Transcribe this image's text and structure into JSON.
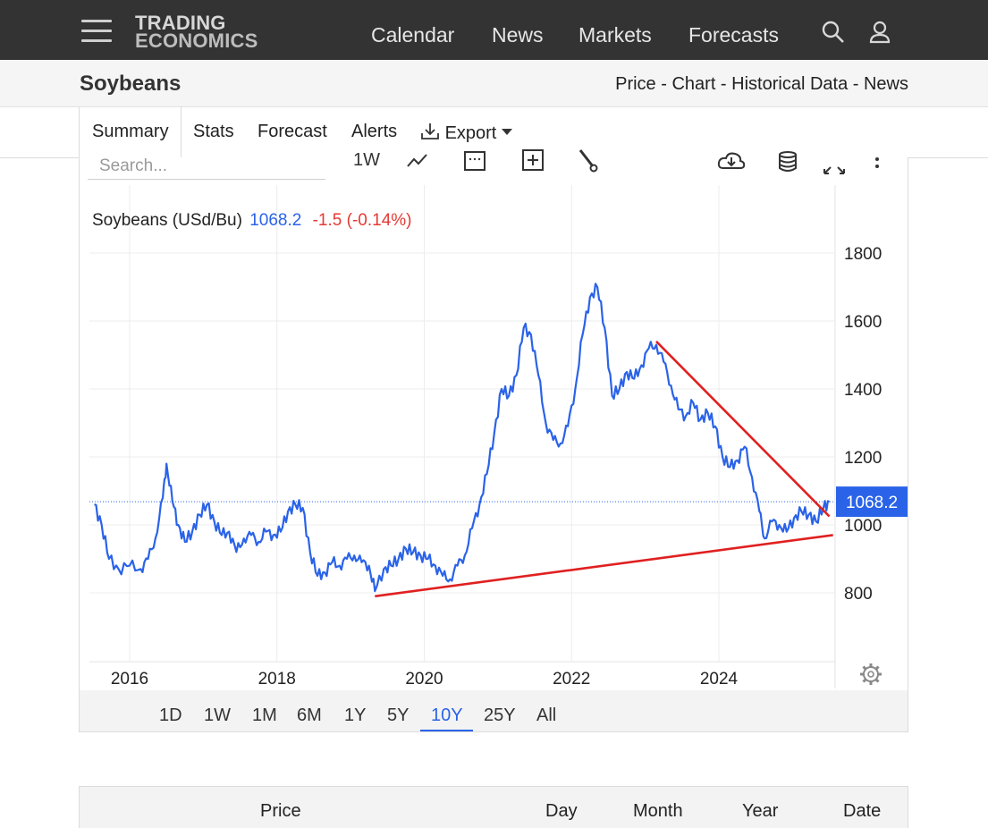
{
  "nav": {
    "logo_line1": "TRADING",
    "logo_line2": "ECONOMICS",
    "items": [
      "Calendar",
      "News",
      "Markets",
      "Forecasts"
    ],
    "icons": [
      "menu-icon",
      "search-icon",
      "user-icon"
    ]
  },
  "header": {
    "title": "Soybeans",
    "breadcrumbs": [
      "Price",
      "Chart",
      "Historical Data",
      "News"
    ],
    "separator": " - "
  },
  "tabs": {
    "items": [
      "Summary",
      "Stats",
      "Forecast",
      "Alerts"
    ],
    "export_label": "Export",
    "active": "Summary"
  },
  "toolbar": {
    "search_placeholder": "Search...",
    "interval_label": "1W",
    "icons": [
      "line-chart-icon",
      "calendar-icon",
      "add-indicator-icon",
      "draw-tool-icon",
      "download-icon",
      "database-icon",
      "fullscreen-icon",
      "more-options-icon"
    ]
  },
  "chart_header": {
    "name": "Soybeans (USd/Bu)",
    "price": "1068.2",
    "change": "-1.5 (-0.14%)",
    "price_color": "#2a63e8",
    "change_color": "#e53935"
  },
  "chart_data": {
    "type": "line",
    "title": "Soybeans (USd/Bu)",
    "x_tick_labels": [
      "2016",
      "2018",
      "2020",
      "2022",
      "2024"
    ],
    "y_tick_labels": [
      "800",
      "1000",
      "1200",
      "1400",
      "1600",
      "1800"
    ],
    "ylim": [
      600,
      1800
    ],
    "xlim": [
      2015.5,
      2025.6
    ],
    "last_value_label": "1068.2",
    "last_value": 1068.2,
    "grid": true,
    "series": [
      {
        "color": "#2a63e8",
        "points": [
          [
            2015.52,
            1060
          ],
          [
            2015.62,
            1000
          ],
          [
            2015.72,
            900
          ],
          [
            2015.85,
            870
          ],
          [
            2016.0,
            880
          ],
          [
            2016.15,
            870
          ],
          [
            2016.25,
            900
          ],
          [
            2016.35,
            960
          ],
          [
            2016.45,
            1080
          ],
          [
            2016.5,
            1180
          ],
          [
            2016.58,
            1070
          ],
          [
            2016.66,
            1000
          ],
          [
            2016.75,
            950
          ],
          [
            2016.85,
            980
          ],
          [
            2016.95,
            1030
          ],
          [
            2017.05,
            1060
          ],
          [
            2017.15,
            1010
          ],
          [
            2017.25,
            970
          ],
          [
            2017.35,
            980
          ],
          [
            2017.45,
            920
          ],
          [
            2017.55,
            960
          ],
          [
            2017.65,
            970
          ],
          [
            2017.75,
            950
          ],
          [
            2017.85,
            980
          ],
          [
            2017.95,
            970
          ],
          [
            2018.05,
            980
          ],
          [
            2018.15,
            1040
          ],
          [
            2018.25,
            1060
          ],
          [
            2018.35,
            1050
          ],
          [
            2018.45,
            920
          ],
          [
            2018.55,
            850
          ],
          [
            2018.65,
            860
          ],
          [
            2018.75,
            890
          ],
          [
            2018.85,
            880
          ],
          [
            2018.95,
            900
          ],
          [
            2019.05,
            910
          ],
          [
            2019.15,
            890
          ],
          [
            2019.25,
            880
          ],
          [
            2019.33,
            805
          ],
          [
            2019.45,
            870
          ],
          [
            2019.55,
            880
          ],
          [
            2019.65,
            900
          ],
          [
            2019.75,
            930
          ],
          [
            2019.85,
            920
          ],
          [
            2019.95,
            910
          ],
          [
            2020.05,
            900
          ],
          [
            2020.15,
            880
          ],
          [
            2020.25,
            850
          ],
          [
            2020.35,
            840
          ],
          [
            2020.45,
            880
          ],
          [
            2020.55,
            910
          ],
          [
            2020.65,
            990
          ],
          [
            2020.75,
            1060
          ],
          [
            2020.85,
            1150
          ],
          [
            2020.95,
            1270
          ],
          [
            2021.05,
            1400
          ],
          [
            2021.15,
            1380
          ],
          [
            2021.25,
            1440
          ],
          [
            2021.35,
            1580
          ],
          [
            2021.45,
            1560
          ],
          [
            2021.55,
            1440
          ],
          [
            2021.65,
            1300
          ],
          [
            2021.75,
            1250
          ],
          [
            2021.85,
            1240
          ],
          [
            2021.95,
            1290
          ],
          [
            2022.05,
            1400
          ],
          [
            2022.15,
            1560
          ],
          [
            2022.25,
            1670
          ],
          [
            2022.35,
            1700
          ],
          [
            2022.45,
            1580
          ],
          [
            2022.55,
            1380
          ],
          [
            2022.65,
            1400
          ],
          [
            2022.75,
            1450
          ],
          [
            2022.85,
            1430
          ],
          [
            2022.95,
            1470
          ],
          [
            2023.05,
            1520
          ],
          [
            2023.15,
            1530
          ],
          [
            2023.25,
            1480
          ],
          [
            2023.35,
            1410
          ],
          [
            2023.45,
            1340
          ],
          [
            2023.55,
            1320
          ],
          [
            2023.65,
            1360
          ],
          [
            2023.75,
            1310
          ],
          [
            2023.85,
            1330
          ],
          [
            2023.95,
            1290
          ],
          [
            2024.05,
            1200
          ],
          [
            2024.15,
            1170
          ],
          [
            2024.25,
            1190
          ],
          [
            2024.35,
            1230
          ],
          [
            2024.45,
            1140
          ],
          [
            2024.55,
            1040
          ],
          [
            2024.62,
            960
          ],
          [
            2024.72,
            1010
          ],
          [
            2024.82,
            1000
          ],
          [
            2024.92,
            980
          ],
          [
            2025.02,
            1020
          ],
          [
            2025.12,
            1040
          ],
          [
            2025.22,
            1030
          ],
          [
            2025.32,
            1010
          ],
          [
            2025.42,
            1050
          ],
          [
            2025.5,
            1068.2
          ]
        ]
      }
    ],
    "trendlines": [
      {
        "color": "#e02020",
        "from": [
          2023.15,
          1540
        ],
        "to": [
          2025.5,
          1025
        ]
      },
      {
        "color": "#e02020",
        "from": [
          2019.33,
          790
        ],
        "to": [
          2025.55,
          970
        ]
      }
    ]
  },
  "ranges": {
    "items": [
      "1D",
      "1W",
      "1M",
      "6M",
      "1Y",
      "5Y",
      "10Y",
      "25Y",
      "All"
    ],
    "active": "10Y"
  },
  "table": {
    "headers": [
      "Price",
      "Day",
      "Month",
      "Year",
      "Date"
    ]
  }
}
